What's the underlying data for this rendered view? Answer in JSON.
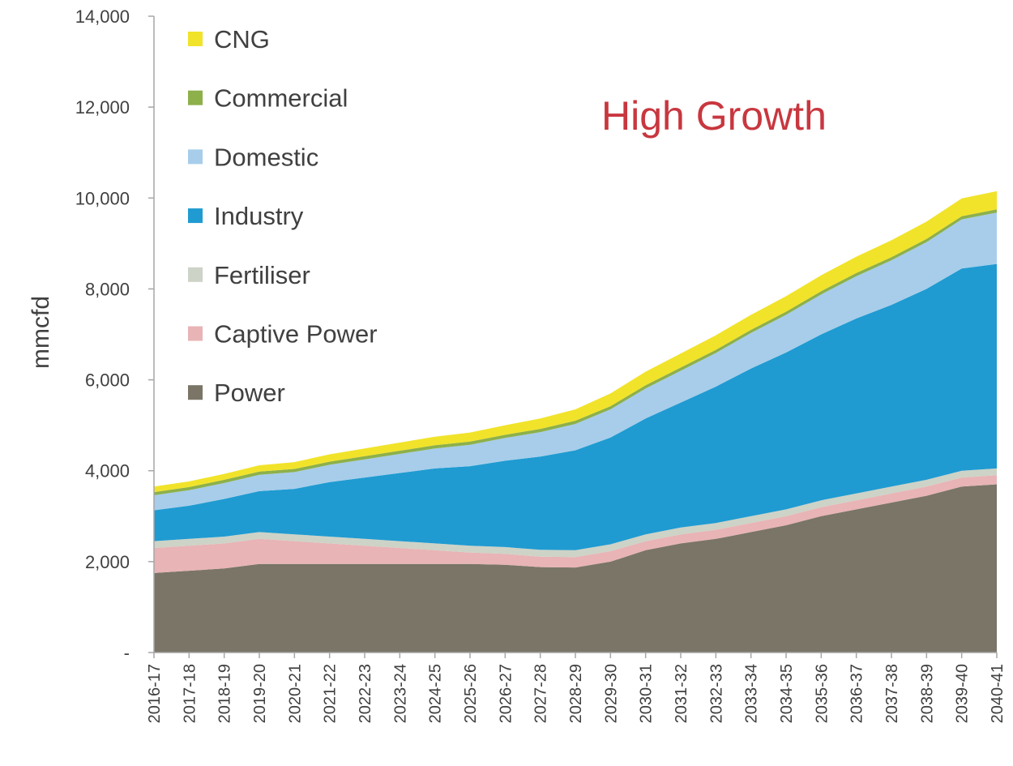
{
  "chart_data": {
    "type": "area",
    "title": "High Growth",
    "ylabel": "mmcfd",
    "xlabel": "",
    "ylim": [
      0,
      14000
    ],
    "y_ticks": [
      0,
      2000,
      4000,
      6000,
      8000,
      10000,
      12000,
      14000
    ],
    "y_tick_labels": [
      "-",
      "2,000",
      "4,000",
      "6,000",
      "8,000",
      "10,000",
      "12,000",
      "14,000"
    ],
    "stacked": true,
    "grid": false,
    "legend_position": "top-left",
    "title_color": "#c8373f",
    "categories": [
      "2016-17",
      "2017-18",
      "2018-19",
      "2019-20",
      "2020-21",
      "2021-22",
      "2022-23",
      "2023-24",
      "2024-25",
      "2025-26",
      "2026-27",
      "2027-28",
      "2028-29",
      "2029-30",
      "2030-31",
      "2031-32",
      "2032-33",
      "2033-34",
      "2034-35",
      "2035-36",
      "2036-37",
      "2037-38",
      "2038-39",
      "2039-40",
      "2040-41"
    ],
    "series": [
      {
        "name": "Power",
        "color": "#7a7567",
        "values": [
          1750,
          1800,
          1850,
          1950,
          1950,
          1950,
          1950,
          1950,
          1950,
          1950,
          1930,
          1880,
          1870,
          2000,
          2250,
          2400,
          2500,
          2650,
          2800,
          3000,
          3150,
          3300,
          3450,
          3650,
          3700
        ]
      },
      {
        "name": "Captive Power",
        "color": "#e8b4b6",
        "values": [
          550,
          550,
          550,
          550,
          500,
          450,
          400,
          350,
          300,
          250,
          240,
          230,
          230,
          230,
          200,
          200,
          200,
          200,
          200,
          200,
          200,
          200,
          200,
          200,
          200
        ]
      },
      {
        "name": "Fertiliser",
        "color": "#cdd3c7",
        "values": [
          150,
          150,
          150,
          150,
          150,
          150,
          150,
          150,
          150,
          150,
          150,
          150,
          150,
          150,
          150,
          150,
          150,
          150,
          150,
          150,
          150,
          150,
          150,
          150,
          150
        ]
      },
      {
        "name": "Industry",
        "color": "#1f9bd1",
        "values": [
          680,
          730,
          830,
          900,
          1000,
          1200,
          1350,
          1500,
          1650,
          1750,
          1900,
          2050,
          2200,
          2350,
          2550,
          2750,
          3000,
          3250,
          3450,
          3650,
          3850,
          4000,
          4200,
          4450,
          4500
        ]
      },
      {
        "name": "Domestic",
        "color": "#a7cdea",
        "values": [
          330,
          340,
          350,
          360,
          370,
          380,
          400,
          420,
          440,
          470,
          500,
          540,
          580,
          620,
          660,
          700,
          740,
          780,
          830,
          880,
          930,
          980,
          1030,
          1080,
          1130
        ]
      },
      {
        "name": "Commercial",
        "color": "#8db04a",
        "values": [
          70,
          70,
          70,
          70,
          70,
          70,
          70,
          70,
          70,
          70,
          70,
          70,
          70,
          70,
          70,
          70,
          70,
          70,
          70,
          70,
          70,
          70,
          70,
          70,
          70
        ]
      },
      {
        "name": "CNG",
        "color": "#f1e32a",
        "values": [
          120,
          125,
          130,
          140,
          150,
          160,
          170,
          180,
          190,
          200,
          210,
          230,
          250,
          280,
          300,
          310,
          320,
          330,
          340,
          350,
          360,
          370,
          380,
          390,
          400
        ]
      }
    ],
    "legend_order": [
      "CNG",
      "Commercial",
      "Domestic",
      "Industry",
      "Fertiliser",
      "Captive Power",
      "Power"
    ]
  }
}
